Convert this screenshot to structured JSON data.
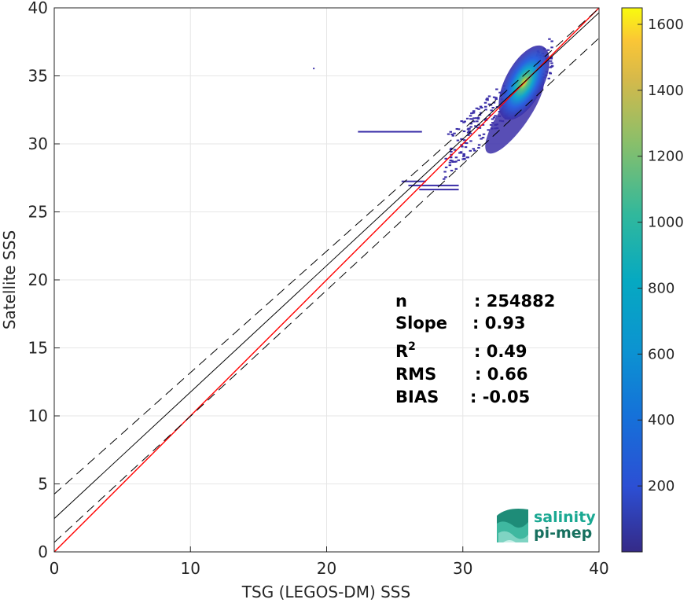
{
  "chart_data": {
    "type": "heatmap",
    "xlabel": "TSG (LEGOS-DM) SSS",
    "ylabel": "Satellite SSS",
    "xlim": [
      0,
      40
    ],
    "ylim": [
      0,
      40
    ],
    "xticks": [
      "0",
      "10",
      "20",
      "30",
      "40"
    ],
    "yticks": [
      "0",
      "5",
      "10",
      "15",
      "20",
      "25",
      "30",
      "35",
      "40"
    ],
    "grid": true,
    "colorbar": {
      "range": [
        0,
        1650
      ],
      "ticks": [
        "200",
        "400",
        "600",
        "800",
        "1000",
        "1200",
        "1400",
        "1600"
      ],
      "colormap": "parula"
    },
    "density_peak": {
      "x": 34.5,
      "y": 34.5,
      "max_count": 1650
    },
    "lines": [
      {
        "name": "identity",
        "intercept": 0,
        "slope": 1,
        "color": "#ff0000",
        "style": "solid"
      },
      {
        "name": "regression",
        "intercept": 2.45,
        "slope": 0.93,
        "color": "#000000",
        "style": "solid"
      },
      {
        "name": "regression-upper",
        "intercept": 4.25,
        "slope": 0.893,
        "color": "#000000",
        "style": "dashed"
      },
      {
        "name": "regression-lower",
        "intercept": 0.7,
        "slope": 0.927,
        "color": "#000000",
        "style": "dashed"
      }
    ],
    "stats": [
      {
        "label": "n",
        "value": ": 254882"
      },
      {
        "label": "Slope",
        "value": ": 0.93"
      },
      {
        "label": "R",
        "sup": "2",
        "value": ": 0.49"
      },
      {
        "label": "RMS",
        "value": ": 0.66"
      },
      {
        "label": "BIAS",
        "value": ": -0.05"
      }
    ]
  },
  "logo": {
    "line1": "salinity",
    "line2": "pi-mep",
    "color1": "#1aa892",
    "color2": "#17705f"
  }
}
